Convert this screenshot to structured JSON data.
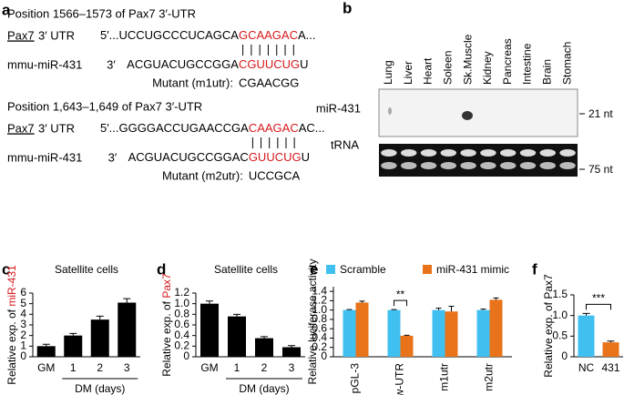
{
  "panels": {
    "a": {
      "label": "a",
      "blocks": [
        {
          "position": "Position 1566–1573 of Pax7 3′-UTR",
          "target_name": "Pax7",
          "target_utr": "3′ UTR",
          "target_seq": [
            {
              "text": "5′...UCCUGCCCUCAGCA",
              "color": "#000000"
            },
            {
              "text": "GCAAGAC",
              "color": "#d7191c"
            },
            {
              "text": "A...",
              "color": "#000000"
            }
          ],
          "mirna_name": "mmu-miR-431",
          "mirna_end": "3′",
          "mirna_seq": [
            {
              "text": "ACGUACUGCCGGA",
              "color": "#000000"
            },
            {
              "text": "CGUUCUG",
              "color": "#d7191c"
            },
            {
              "text": "U",
              "color": "#000000"
            }
          ],
          "mutant_label": "Mutant (m1utr):",
          "mutant_seq": "CGAACGG"
        },
        {
          "position": "Position 1,643–1,649 of Pax7 3′-UTR",
          "target_name": "Pax7",
          "target_utr": "3′ UTR",
          "target_seq": [
            {
              "text": "5′...GGGGACCUGAACCGA",
              "color": "#000000"
            },
            {
              "text": "CAAGAC",
              "color": "#d7191c"
            },
            {
              "text": "AC...",
              "color": "#000000"
            }
          ],
          "mirna_name": "mmu-miR-431",
          "mirna_end": "3′",
          "mirna_seq": [
            {
              "text": "ACGUACUGCCGGAC",
              "color": "#000000"
            },
            {
              "text": "GUUCUG",
              "color": "#d7191c"
            },
            {
              "text": "U",
              "color": "#000000"
            }
          ],
          "mutant_label": "Mutant (m2utr):",
          "mutant_seq": "UCCGCA"
        }
      ]
    },
    "b": {
      "label": "b",
      "lanes": [
        {
          "name": "Lung",
          "color": "#000000"
        },
        {
          "name": "Liver",
          "color": "#000000"
        },
        {
          "name": "Heart",
          "color": "#000000"
        },
        {
          "name": "Soleen",
          "color": "#000000"
        },
        {
          "name": "Sk.Muscle",
          "color": "#d7191c"
        },
        {
          "name": "Kidney",
          "color": "#000000"
        },
        {
          "name": "Pancreas",
          "color": "#000000"
        },
        {
          "name": "Intestine",
          "color": "#000000"
        },
        {
          "name": "Brain",
          "color": "#000000"
        },
        {
          "name": "Stomach",
          "color": "#000000"
        }
      ],
      "rows": [
        "miR-431",
        "tRNA"
      ],
      "sizes": [
        "21 nt",
        "75 nt"
      ]
    }
  },
  "chart_data": [
    {
      "type": "bar",
      "panel": "c",
      "title": "Satellite cells",
      "ylabel": [
        {
          "text": "Relative exp. of ",
          "color": "#000000"
        },
        {
          "text": "miR-431",
          "color": "#d7191c"
        }
      ],
      "xlabel": "DM (days)",
      "categories": [
        "GM",
        "1",
        "2",
        "3"
      ],
      "values": [
        1.0,
        2.0,
        3.5,
        5.1
      ],
      "errors": [
        0.18,
        0.2,
        0.32,
        0.38
      ],
      "color": "#000000",
      "ylim": [
        0,
        6
      ],
      "yticks": [
        0,
        1,
        2,
        3,
        4,
        5,
        6
      ]
    },
    {
      "type": "bar",
      "panel": "d",
      "title": "Satellite cells",
      "ylabel": [
        {
          "text": "Relative exp. of ",
          "color": "#000000"
        },
        {
          "text": "Pax7",
          "color": "#d7191c"
        }
      ],
      "xlabel": "DM (days)",
      "categories": [
        "GM",
        "1",
        "2",
        "3"
      ],
      "values": [
        1.0,
        0.76,
        0.35,
        0.18
      ],
      "errors": [
        0.05,
        0.04,
        0.03,
        0.03
      ],
      "color": "#000000",
      "ylim": [
        0,
        1.2
      ],
      "yticks": [
        0,
        0.2,
        0.4,
        0.6,
        0.8,
        {
          "value": 1,
          "label": "1.0"
        },
        1.2
      ]
    },
    {
      "type": "grouped_bar",
      "panel": "e",
      "ylabel": [
        {
          "text": "Relative luciferase activity",
          "color": "#000000"
        }
      ],
      "categories": [
        "pGL-3",
        "w-UTR",
        "m1utr",
        "m2utr"
      ],
      "series": [
        {
          "name": "Scramble",
          "color": "#3fc0f0",
          "values": [
            1.0,
            1.0,
            1.0,
            1.0
          ],
          "errors": [
            0.01,
            0.01,
            0.04,
            0.02
          ]
        },
        {
          "name": "miR-431 mimic",
          "color": "#e8731a",
          "values": [
            1.16,
            0.45,
            0.97,
            1.22
          ],
          "errors": [
            0.03,
            0.01,
            0.11,
            0.04
          ]
        }
      ],
      "annotations": [
        "**"
      ],
      "ylim": [
        0,
        1.5
      ],
      "yticks": [
        0,
        0.2,
        0.4,
        0.6,
        0.8,
        {
          "value": 1,
          "label": "1.0"
        },
        1.2,
        1.4
      ]
    },
    {
      "type": "bar",
      "panel": "f",
      "ylabel": [
        {
          "text": "Relative exp. of Pax7",
          "color": "#000000"
        }
      ],
      "categories": [
        "NC",
        "431"
      ],
      "values": [
        1.0,
        0.35
      ],
      "errors": [
        0.05,
        0.03
      ],
      "colors": [
        "#3fc0f0",
        "#e8731a"
      ],
      "annotations": [
        "***"
      ],
      "ylim": [
        0,
        1.5
      ],
      "yticks": [
        0,
        0.5,
        {
          "value": 1,
          "label": "1.0"
        },
        1.5
      ]
    }
  ]
}
